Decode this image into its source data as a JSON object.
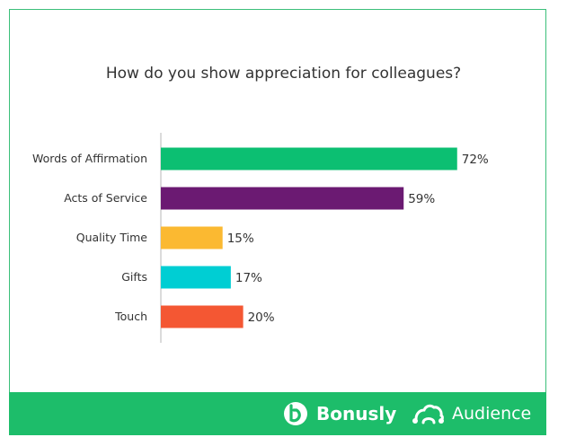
{
  "chart_data": {
    "type": "bar",
    "orientation": "horizontal",
    "title": "How do you show appreciation for colleagues?",
    "categories": [
      "Words of Affirmation",
      "Acts of Service",
      "Quality Time",
      "Gifts",
      "Touch"
    ],
    "values": [
      72,
      59,
      15,
      17,
      20
    ],
    "value_labels": [
      "72%",
      "59%",
      "15%",
      "17%",
      "20%"
    ],
    "colors": [
      "#0cbf72",
      "#6b1a72",
      "#fbb931",
      "#00ced3",
      "#f45733"
    ],
    "xlim": [
      0,
      100
    ],
    "grid": false,
    "legend": "none"
  },
  "footer": {
    "bonusly_label": "Bonusly",
    "audience_label": "Audience",
    "bonusly_icon": "bonusly-logo-icon",
    "audience_icon": "audience-logo-icon",
    "background": "#1dbd6a"
  }
}
